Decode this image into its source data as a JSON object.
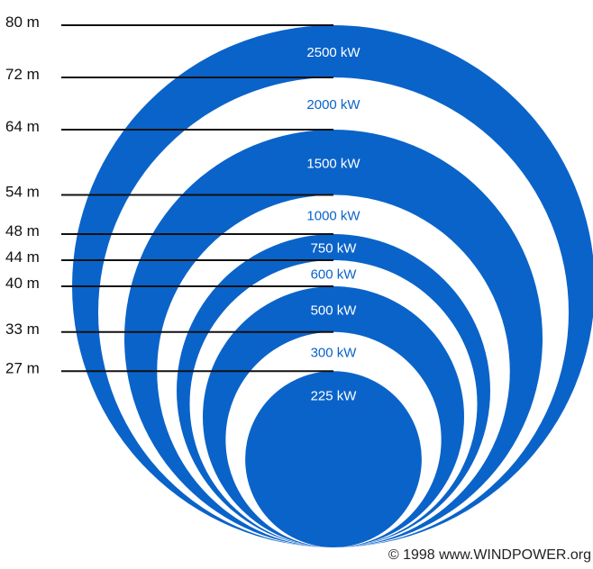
{
  "rotors": [
    {
      "diameter": "80 m",
      "power": "2500 kW"
    },
    {
      "diameter": "72 m",
      "power": "2000 kW"
    },
    {
      "diameter": "64 m",
      "power": "1500 kW"
    },
    {
      "diameter": "54 m",
      "power": "1000 kW"
    },
    {
      "diameter": "48 m",
      "power": "750 kW"
    },
    {
      "diameter": "44 m",
      "power": "600 kW"
    },
    {
      "diameter": "40 m",
      "power": "500 kW"
    },
    {
      "diameter": "33 m",
      "power": "300 kW"
    },
    {
      "diameter": "27 m",
      "power": "225 kW"
    }
  ],
  "copyright": "© 1998 www.WINDPOWER.org",
  "colors": {
    "fill": "#0a63c9",
    "background": "#ffffff",
    "line": "#111111"
  }
}
